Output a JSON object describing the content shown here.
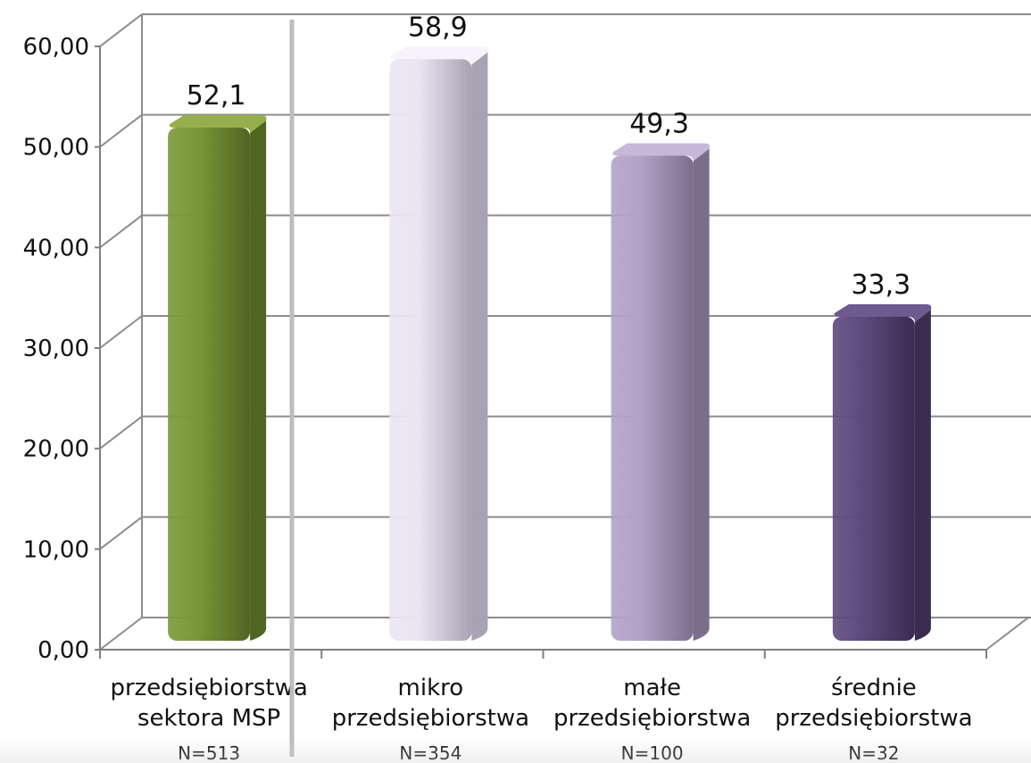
{
  "chart_data": {
    "type": "bar",
    "title": "",
    "xlabel": "",
    "ylabel": "",
    "categories": [
      "przedsiębiorstwa sektora MSP",
      "mikro przedsiębiorstwa",
      "małe przedsiębiorstwa",
      "średnie przedsiębiorstwa"
    ],
    "category_lines": [
      [
        "przedsiębiorstwa",
        "sektora MSP"
      ],
      [
        "mikro",
        "przedsiębiorstwa"
      ],
      [
        "małe",
        "przedsiębiorstwa"
      ],
      [
        "średnie",
        "przedsiębiorstwa"
      ]
    ],
    "sample_sizes": [
      "N=513",
      "N=354",
      "N=100",
      "N=32"
    ],
    "values": [
      52.1,
      58.9,
      49.3,
      33.3
    ],
    "value_labels": [
      "52,1",
      "58,9",
      "49,3",
      "33,3"
    ],
    "ylim": [
      0,
      60
    ],
    "yticks": [
      "0,00",
      "10,00",
      "20,00",
      "30,00",
      "40,00",
      "50,00",
      "60,00"
    ],
    "grid": true,
    "legend": "none",
    "bar_colors": [
      {
        "front": "#7a9838",
        "side": "#4f6522",
        "top": "#93b04a"
      },
      {
        "front": "#ebe5f3",
        "side": "#a8a2b2",
        "top": "#f6f3fa"
      },
      {
        "front": "#b3a2c8",
        "side": "#7b6e8c",
        "top": "#c6b8d8"
      },
      {
        "front": "#5e4a7e",
        "side": "#3b2c52",
        "top": "#6e5a8f"
      }
    ],
    "grid_color": "#8c8c8c",
    "separator_color": "#bdbdbd",
    "text_color": "#111111"
  }
}
